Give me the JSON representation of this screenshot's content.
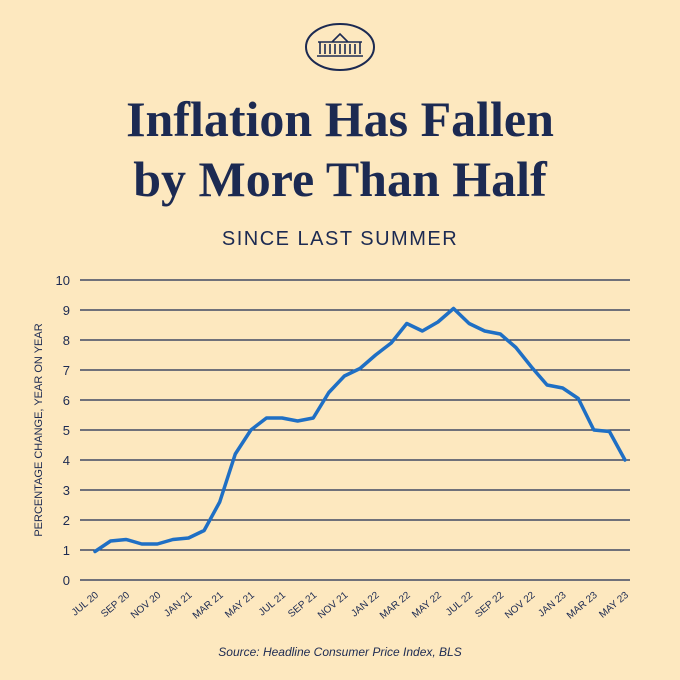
{
  "chart_data": {
    "type": "line",
    "title": [
      "Inflation Has Fallen",
      "by More Than Half"
    ],
    "subtitle": "SINCE LAST SUMMER",
    "ylabel": "PERCENTAGE CHANGE, YEAR ON YEAR",
    "source": "Source: Headline Consumer Price Index, BLS",
    "categories": [
      "JUL 20",
      null,
      "SEP 20",
      null,
      "NOV 20",
      null,
      "JAN 21",
      null,
      "MAR 21",
      null,
      "MAY 21",
      null,
      "JUL 21",
      null,
      "SEP 21",
      null,
      "NOV 21",
      null,
      "JAN 22",
      null,
      "MAR 22",
      null,
      "MAY 22",
      null,
      "JUL 22",
      null,
      "SEP 22",
      null,
      "NOV 22",
      null,
      "JAN 23",
      null,
      "MAR 23",
      null,
      "MAY 23"
    ],
    "values": [
      0.95,
      1.3,
      1.35,
      1.2,
      1.2,
      1.35,
      1.4,
      1.65,
      2.6,
      4.2,
      5.0,
      5.4,
      5.4,
      5.3,
      5.4,
      6.25,
      6.8,
      7.05,
      7.5,
      7.9,
      8.55,
      8.3,
      8.6,
      9.05,
      8.55,
      8.3,
      8.2,
      7.75,
      7.1,
      6.5,
      6.4,
      6.05,
      5.0,
      4.95,
      4.0
    ],
    "color": "#1f6fc4",
    "ylim": [
      0,
      10
    ],
    "yticks": [
      0,
      1,
      2,
      3,
      4,
      5,
      6,
      7,
      8,
      9,
      10
    ],
    "grid": true
  }
}
